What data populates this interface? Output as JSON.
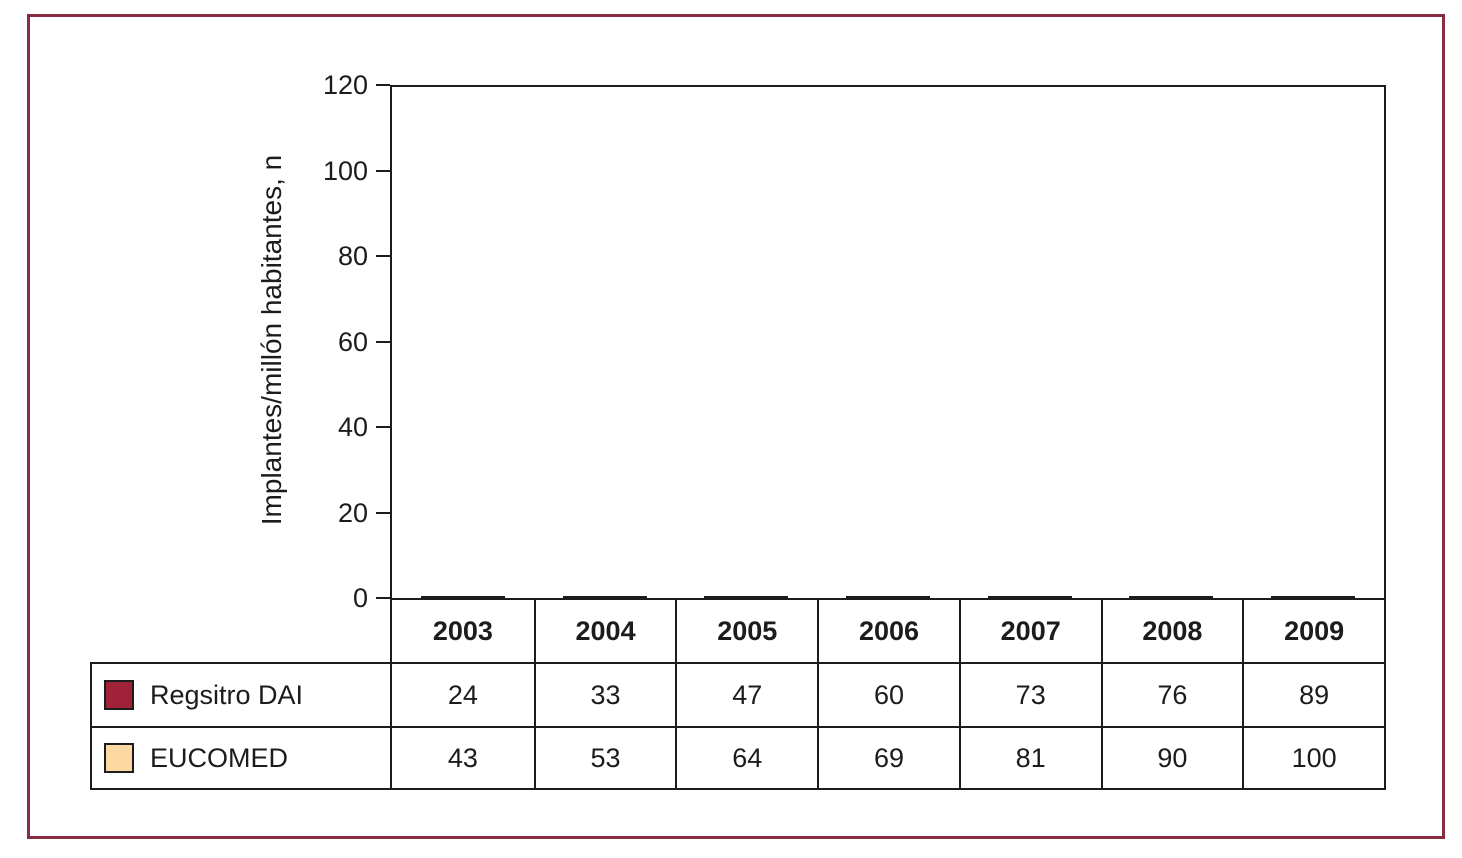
{
  "figure": {
    "outer_border_color": "#872D43",
    "axis_line_color": "#1c1c1c",
    "background_color": "#ffffff"
  },
  "chart_data": {
    "type": "bar",
    "title": "",
    "xlabel": "",
    "ylabel": "Implantes/millón habitantes, n",
    "ylim": [
      0,
      120
    ],
    "yticks": [
      0,
      20,
      40,
      60,
      80,
      100,
      120
    ],
    "grid": false,
    "legend_position": "table-left",
    "categories": [
      "2003",
      "2004",
      "2005",
      "2006",
      "2007",
      "2008",
      "2009"
    ],
    "series": [
      {
        "name": "Regsitro DAI",
        "color": "#A02239",
        "values": [
          24,
          33,
          47,
          60,
          73,
          76,
          89
        ]
      },
      {
        "name": "EUCOMED",
        "color": "#FCD9A2",
        "values": [
          43,
          53,
          64,
          69,
          81,
          90,
          100
        ]
      }
    ]
  }
}
